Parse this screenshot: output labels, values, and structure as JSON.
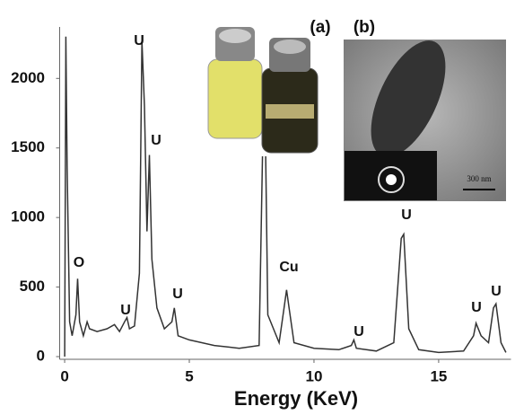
{
  "chart_data": {
    "type": "line",
    "x_label": "Energy  (KeV)",
    "x": [
      0.0,
      0.05,
      0.1,
      0.2,
      0.3,
      0.45,
      0.52,
      0.6,
      0.75,
      0.9,
      1.0,
      1.3,
      1.7,
      2.0,
      2.2,
      2.4,
      2.5,
      2.6,
      2.8,
      3.0,
      3.1,
      3.2,
      3.3,
      3.4,
      3.5,
      3.7,
      4.0,
      4.3,
      4.4,
      4.55,
      5.0,
      6.0,
      7.0,
      7.8,
      7.95,
      8.05,
      8.15,
      8.6,
      8.8,
      8.9,
      9.0,
      9.2,
      10,
      11,
      11.5,
      11.6,
      11.7,
      12.5,
      13.2,
      13.5,
      13.6,
      13.8,
      14.2,
      15,
      16,
      16.4,
      16.5,
      16.7,
      17.0,
      17.2,
      17.3,
      17.5,
      17.7
    ],
    "values": [
      0,
      2300,
      1370,
      250,
      150,
      300,
      560,
      250,
      150,
      250,
      200,
      180,
      200,
      230,
      180,
      250,
      280,
      200,
      220,
      600,
      2270,
      1800,
      900,
      1450,
      700,
      350,
      200,
      250,
      350,
      150,
      120,
      80,
      60,
      80,
      1600,
      1600,
      300,
      100,
      350,
      480,
      350,
      100,
      60,
      50,
      80,
      120,
      60,
      40,
      100,
      850,
      880,
      200,
      50,
      30,
      40,
      150,
      240,
      150,
      100,
      350,
      380,
      100,
      30
    ],
    "color": "#333333",
    "xlim": [
      -0.2,
      17.9
    ],
    "ylim": [
      0,
      2370
    ],
    "xticks": [
      0,
      5,
      10,
      15
    ],
    "yticks": [
      0,
      500,
      1000,
      1500,
      2000
    ],
    "annotations": [
      "U",
      "U",
      "O",
      "U",
      "U",
      "Cu",
      "U",
      "U",
      "U",
      "U",
      "(a)",
      "(b)",
      "300 nm"
    ]
  }
}
